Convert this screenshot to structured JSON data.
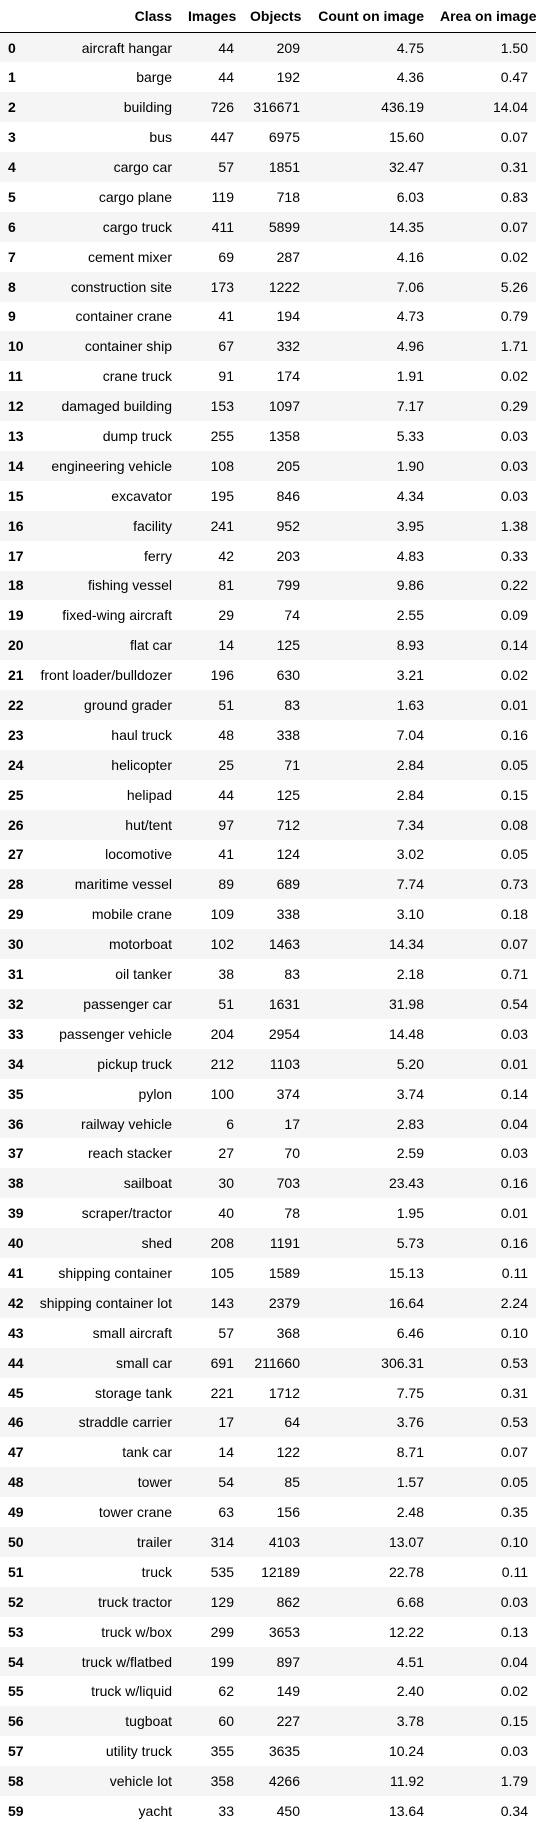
{
  "table": {
    "columns": [
      "",
      "Class",
      "Images",
      "Objects",
      "Count on image",
      "Area on image"
    ],
    "rows": [
      [
        "0",
        "aircraft hangar",
        "44",
        "209",
        "4.75",
        "1.50"
      ],
      [
        "1",
        "barge",
        "44",
        "192",
        "4.36",
        "0.47"
      ],
      [
        "2",
        "building",
        "726",
        "316671",
        "436.19",
        "14.04"
      ],
      [
        "3",
        "bus",
        "447",
        "6975",
        "15.60",
        "0.07"
      ],
      [
        "4",
        "cargo car",
        "57",
        "1851",
        "32.47",
        "0.31"
      ],
      [
        "5",
        "cargo plane",
        "119",
        "718",
        "6.03",
        "0.83"
      ],
      [
        "6",
        "cargo truck",
        "411",
        "5899",
        "14.35",
        "0.07"
      ],
      [
        "7",
        "cement mixer",
        "69",
        "287",
        "4.16",
        "0.02"
      ],
      [
        "8",
        "construction site",
        "173",
        "1222",
        "7.06",
        "5.26"
      ],
      [
        "9",
        "container crane",
        "41",
        "194",
        "4.73",
        "0.79"
      ],
      [
        "10",
        "container ship",
        "67",
        "332",
        "4.96",
        "1.71"
      ],
      [
        "11",
        "crane truck",
        "91",
        "174",
        "1.91",
        "0.02"
      ],
      [
        "12",
        "damaged building",
        "153",
        "1097",
        "7.17",
        "0.29"
      ],
      [
        "13",
        "dump truck",
        "255",
        "1358",
        "5.33",
        "0.03"
      ],
      [
        "14",
        "engineering vehicle",
        "108",
        "205",
        "1.90",
        "0.03"
      ],
      [
        "15",
        "excavator",
        "195",
        "846",
        "4.34",
        "0.03"
      ],
      [
        "16",
        "facility",
        "241",
        "952",
        "3.95",
        "1.38"
      ],
      [
        "17",
        "ferry",
        "42",
        "203",
        "4.83",
        "0.33"
      ],
      [
        "18",
        "fishing vessel",
        "81",
        "799",
        "9.86",
        "0.22"
      ],
      [
        "19",
        "fixed-wing aircraft",
        "29",
        "74",
        "2.55",
        "0.09"
      ],
      [
        "20",
        "flat car",
        "14",
        "125",
        "8.93",
        "0.14"
      ],
      [
        "21",
        "front loader/bulldozer",
        "196",
        "630",
        "3.21",
        "0.02"
      ],
      [
        "22",
        "ground grader",
        "51",
        "83",
        "1.63",
        "0.01"
      ],
      [
        "23",
        "haul truck",
        "48",
        "338",
        "7.04",
        "0.16"
      ],
      [
        "24",
        "helicopter",
        "25",
        "71",
        "2.84",
        "0.05"
      ],
      [
        "25",
        "helipad",
        "44",
        "125",
        "2.84",
        "0.15"
      ],
      [
        "26",
        "hut/tent",
        "97",
        "712",
        "7.34",
        "0.08"
      ],
      [
        "27",
        "locomotive",
        "41",
        "124",
        "3.02",
        "0.05"
      ],
      [
        "28",
        "maritime vessel",
        "89",
        "689",
        "7.74",
        "0.73"
      ],
      [
        "29",
        "mobile crane",
        "109",
        "338",
        "3.10",
        "0.18"
      ],
      [
        "30",
        "motorboat",
        "102",
        "1463",
        "14.34",
        "0.07"
      ],
      [
        "31",
        "oil tanker",
        "38",
        "83",
        "2.18",
        "0.71"
      ],
      [
        "32",
        "passenger car",
        "51",
        "1631",
        "31.98",
        "0.54"
      ],
      [
        "33",
        "passenger vehicle",
        "204",
        "2954",
        "14.48",
        "0.03"
      ],
      [
        "34",
        "pickup truck",
        "212",
        "1103",
        "5.20",
        "0.01"
      ],
      [
        "35",
        "pylon",
        "100",
        "374",
        "3.74",
        "0.14"
      ],
      [
        "36",
        "railway vehicle",
        "6",
        "17",
        "2.83",
        "0.04"
      ],
      [
        "37",
        "reach stacker",
        "27",
        "70",
        "2.59",
        "0.03"
      ],
      [
        "38",
        "sailboat",
        "30",
        "703",
        "23.43",
        "0.16"
      ],
      [
        "39",
        "scraper/tractor",
        "40",
        "78",
        "1.95",
        "0.01"
      ],
      [
        "40",
        "shed",
        "208",
        "1191",
        "5.73",
        "0.16"
      ],
      [
        "41",
        "shipping container",
        "105",
        "1589",
        "15.13",
        "0.11"
      ],
      [
        "42",
        "shipping container lot",
        "143",
        "2379",
        "16.64",
        "2.24"
      ],
      [
        "43",
        "small aircraft",
        "57",
        "368",
        "6.46",
        "0.10"
      ],
      [
        "44",
        "small car",
        "691",
        "211660",
        "306.31",
        "0.53"
      ],
      [
        "45",
        "storage tank",
        "221",
        "1712",
        "7.75",
        "0.31"
      ],
      [
        "46",
        "straddle carrier",
        "17",
        "64",
        "3.76",
        "0.53"
      ],
      [
        "47",
        "tank car",
        "14",
        "122",
        "8.71",
        "0.07"
      ],
      [
        "48",
        "tower",
        "54",
        "85",
        "1.57",
        "0.05"
      ],
      [
        "49",
        "tower crane",
        "63",
        "156",
        "2.48",
        "0.35"
      ],
      [
        "50",
        "trailer",
        "314",
        "4103",
        "13.07",
        "0.10"
      ],
      [
        "51",
        "truck",
        "535",
        "12189",
        "22.78",
        "0.11"
      ],
      [
        "52",
        "truck tractor",
        "129",
        "862",
        "6.68",
        "0.03"
      ],
      [
        "53",
        "truck w/box",
        "299",
        "3653",
        "12.22",
        "0.13"
      ],
      [
        "54",
        "truck w/flatbed",
        "199",
        "897",
        "4.51",
        "0.04"
      ],
      [
        "55",
        "truck w/liquid",
        "62",
        "149",
        "2.40",
        "0.02"
      ],
      [
        "56",
        "tugboat",
        "60",
        "227",
        "3.78",
        "0.15"
      ],
      [
        "57",
        "utility truck",
        "355",
        "3635",
        "10.24",
        "0.03"
      ],
      [
        "58",
        "vehicle lot",
        "358",
        "4266",
        "11.92",
        "1.79"
      ],
      [
        "59",
        "yacht",
        "33",
        "450",
        "13.64",
        "0.34"
      ]
    ]
  }
}
